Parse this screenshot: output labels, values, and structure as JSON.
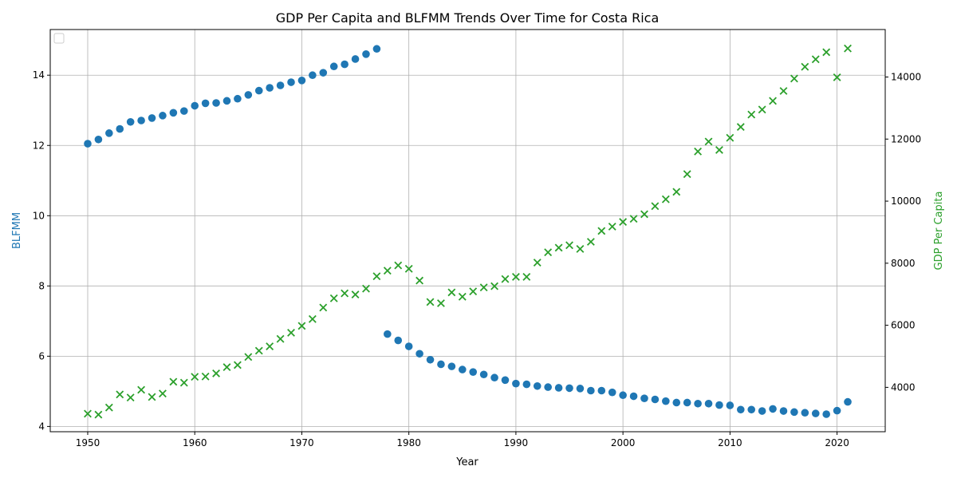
{
  "chart_data": {
    "type": "scatter",
    "title": "GDP Per Capita and BLFMM Trends Over Time for Costa Rica",
    "xlabel": "Year",
    "ylabel_left": "BLFMM",
    "ylabel_right": "GDP Per Capita",
    "xlim": [
      1946.5,
      2024.5
    ],
    "ylim_left": [
      3.85,
      15.3
    ],
    "ylim_right": [
      2570,
      15530
    ],
    "x_ticks": [
      1950,
      1960,
      1970,
      1980,
      1990,
      2000,
      2010,
      2020
    ],
    "y_left_ticks": [
      4,
      6,
      8,
      10,
      12,
      14
    ],
    "y_right_ticks": [
      4000,
      6000,
      8000,
      10000,
      12000,
      14000
    ],
    "grid": true,
    "legend": "top-left (empty)",
    "colors": {
      "blfmm": "#1f77b4",
      "gdp": "#2ca02c"
    },
    "series": [
      {
        "name": "BLFMM",
        "marker": "circle",
        "axis": "left",
        "x": [
          1950,
          1951,
          1952,
          1953,
          1954,
          1955,
          1956,
          1957,
          1958,
          1959,
          1960,
          1961,
          1962,
          1963,
          1964,
          1965,
          1966,
          1967,
          1968,
          1969,
          1970,
          1971,
          1972,
          1973,
          1974,
          1975,
          1976,
          1977,
          1978,
          1979,
          1980,
          1981,
          1982,
          1983,
          1984,
          1985,
          1986,
          1987,
          1988,
          1989,
          1990,
          1991,
          1992,
          1993,
          1994,
          1995,
          1996,
          1997,
          1998,
          1999,
          2000,
          2001,
          2002,
          2003,
          2004,
          2005,
          2006,
          2007,
          2008,
          2009,
          2010,
          2011,
          2012,
          2013,
          2014,
          2015,
          2016,
          2017,
          2018,
          2019,
          2020,
          2021
        ],
        "values": [
          12.05,
          12.17,
          12.35,
          12.47,
          12.67,
          12.71,
          12.78,
          12.85,
          12.93,
          12.98,
          13.13,
          13.2,
          13.21,
          13.27,
          13.33,
          13.44,
          13.56,
          13.64,
          13.71,
          13.8,
          13.85,
          14.0,
          14.07,
          14.25,
          14.31,
          14.46,
          14.6,
          14.75,
          6.63,
          6.45,
          6.28,
          6.07,
          5.9,
          5.77,
          5.71,
          5.62,
          5.55,
          5.48,
          5.39,
          5.32,
          5.22,
          5.2,
          5.15,
          5.12,
          5.1,
          5.09,
          5.08,
          5.02,
          5.02,
          4.97,
          4.89,
          4.86,
          4.8,
          4.77,
          4.72,
          4.68,
          4.68,
          4.65,
          4.65,
          4.61,
          4.6,
          4.48,
          4.48,
          4.44,
          4.5,
          4.44,
          4.41,
          4.39,
          4.37,
          4.35,
          4.45,
          4.7
        ]
      },
      {
        "name": "GDP Per Capita",
        "marker": "x",
        "axis": "right",
        "x": [
          1950,
          1951,
          1952,
          1953,
          1954,
          1955,
          1956,
          1957,
          1958,
          1959,
          1960,
          1961,
          1962,
          1963,
          1964,
          1965,
          1966,
          1967,
          1968,
          1969,
          1970,
          1971,
          1972,
          1973,
          1974,
          1975,
          1976,
          1977,
          1978,
          1979,
          1980,
          1981,
          1982,
          1983,
          1984,
          1985,
          1986,
          1987,
          1988,
          1989,
          1990,
          1991,
          1992,
          1993,
          1994,
          1995,
          1996,
          1997,
          1998,
          1999,
          2000,
          2001,
          2002,
          2003,
          2004,
          2005,
          2006,
          2007,
          2008,
          2009,
          2010,
          2011,
          2012,
          2013,
          2014,
          2015,
          2016,
          2017,
          2018,
          2019,
          2020,
          2021
        ],
        "values": [
          3150,
          3120,
          3350,
          3770,
          3670,
          3920,
          3690,
          3800,
          4180,
          4150,
          4340,
          4350,
          4450,
          4650,
          4720,
          4980,
          5180,
          5320,
          5560,
          5760,
          5980,
          6200,
          6570,
          6870,
          7030,
          6990,
          7180,
          7580,
          7760,
          7930,
          7820,
          7440,
          6750,
          6710,
          7060,
          6920,
          7090,
          7220,
          7260,
          7490,
          7560,
          7560,
          8020,
          8350,
          8500,
          8580,
          8460,
          8690,
          9040,
          9180,
          9330,
          9430,
          9580,
          9840,
          10060,
          10300,
          10870,
          11600,
          11920,
          11650,
          12040,
          12390,
          12790,
          12950,
          13230,
          13550,
          13950,
          14330,
          14570,
          14800,
          13990,
          14920
        ]
      }
    ]
  }
}
